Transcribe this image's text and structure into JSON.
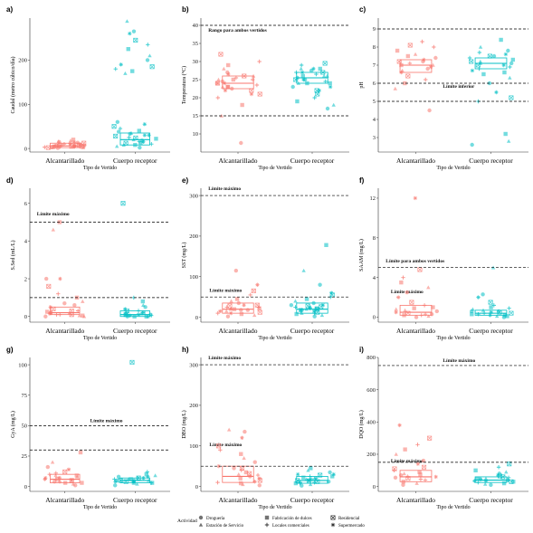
{
  "colors": {
    "alcantarillado": "#F8766D",
    "cuerpo_receptor": "#00BFC4",
    "reference": "#000000"
  },
  "legend": {
    "title": "Actividad",
    "entries": [
      {
        "label": "Droguería",
        "shape": "circle"
      },
      {
        "label": "Estación de Servicio",
        "shape": "triangle"
      },
      {
        "label": "Fabricación de dulces",
        "shape": "square"
      },
      {
        "label": "Locales comerciales",
        "shape": "plus"
      },
      {
        "label": "Residencial",
        "shape": "square-x"
      },
      {
        "label": "Supermercado",
        "shape": "asterisk"
      }
    ]
  },
  "chart_data": [
    {
      "panel": "a)",
      "type": "scatter",
      "ylabel": "Caudal (metro cúbico/día)",
      "xlabel": "Tipo de Vertido",
      "categories": [
        "Alcantarillado",
        "Cuerpo receptor"
      ],
      "ylim": [
        -8,
        295
      ],
      "yticks": [
        0,
        100,
        200
      ],
      "reference_lines": [],
      "series": [
        {
          "name": "Alcantarillado",
          "median": 6,
          "q1": 2,
          "q3": 12,
          "values": [
            1,
            2,
            3,
            4,
            5,
            6,
            7,
            8,
            9,
            10,
            12,
            14,
            15,
            18,
            20,
            3,
            5,
            7,
            9,
            2,
            4,
            6,
            8,
            11,
            13,
            16,
            6,
            4,
            2,
            5
          ]
        },
        {
          "name": "Cuerpo receptor",
          "median": 20,
          "q1": 8,
          "q3": 35,
          "values": [
            2,
            5,
            8,
            10,
            12,
            15,
            18,
            20,
            22,
            25,
            28,
            30,
            33,
            35,
            40,
            45,
            50,
            55,
            60,
            8,
            12,
            16,
            24,
            30,
            38,
            170,
            175,
            180,
            185,
            190,
            200,
            210,
            225,
            235,
            245,
            260,
            265,
            288
          ]
        }
      ]
    },
    {
      "panel": "b)",
      "type": "scatter",
      "ylabel": "Temperatura (°C)",
      "xlabel": "Tipo de Vertido",
      "categories": [
        "Alcantarillado",
        "Cuerpo receptor"
      ],
      "ylim": [
        5,
        42
      ],
      "yticks": [
        10,
        15,
        20,
        25,
        30,
        35,
        40
      ],
      "reference_lines": [
        {
          "label": "Rango para ambos vertidos",
          "y": 40,
          "label_y": 38.3,
          "label_x": 0.05
        },
        {
          "label": "",
          "y": 15
        }
      ],
      "series": [
        {
          "name": "Alcantarillado",
          "median": 24,
          "q1": 22.5,
          "q3": 26,
          "values": [
            7.5,
            15,
            18,
            20,
            21,
            22,
            22.5,
            23,
            23,
            23.5,
            24,
            24,
            24.5,
            25,
            25,
            25.5,
            26,
            26.5,
            27,
            28,
            29,
            30,
            32,
            21,
            24,
            26,
            23,
            25,
            22
          ]
        },
        {
          "name": "Cuerpo receptor",
          "median": 25.5,
          "q1": 24,
          "q3": 27,
          "values": [
            17,
            18,
            19,
            20,
            21,
            22,
            23,
            24,
            24,
            24.5,
            25,
            25,
            25.5,
            26,
            26,
            26.5,
            27,
            27,
            27.5,
            28,
            28,
            29,
            29.5,
            23,
            25,
            26,
            24,
            27,
            22,
            28
          ]
        }
      ]
    },
    {
      "panel": "c)",
      "type": "scatter",
      "ylabel": "pH",
      "xlabel": "Tipo de Vertido",
      "categories": [
        "Alcantarillado",
        "Cuerpo receptor"
      ],
      "ylim": [
        2.2,
        9.6
      ],
      "yticks": [
        3,
        4,
        5,
        6,
        7,
        8,
        9
      ],
      "reference_lines": [
        {
          "label": "",
          "y": 9
        },
        {
          "label": "Límite inferior",
          "y": 6,
          "label_y": 5.75,
          "label_x": 0.43
        },
        {
          "label": "Límite inferior",
          "y": 5,
          "label_y": 4.75,
          "label_x": 1.26
        }
      ],
      "series": [
        {
          "name": "Alcantarillado",
          "median": 7,
          "q1": 6.6,
          "q3": 7.3,
          "values": [
            4.5,
            5.7,
            6,
            6.2,
            6.4,
            6.6,
            6.8,
            7,
            7,
            7.1,
            7.2,
            7.3,
            7.4,
            7.6,
            7.8,
            8,
            8.1,
            6.9,
            7.2,
            6.7,
            7.5,
            8.3
          ]
        },
        {
          "name": "Cuerpo receptor",
          "median": 7.1,
          "q1": 6.8,
          "q3": 7.4,
          "values": [
            2.6,
            2.8,
            3.2,
            5,
            5.2,
            5.5,
            6,
            6.3,
            6.6,
            6.8,
            7,
            7,
            7.1,
            7.2,
            7.3,
            7.4,
            7.5,
            7.6,
            7.8,
            8,
            8.4,
            6.9,
            7.2,
            6.7,
            7.5,
            7.1,
            6.5,
            7.7
          ]
        }
      ]
    },
    {
      "panel": "d)",
      "type": "scatter",
      "ylabel": "S.Sed (mL/L)",
      "xlabel": "Tipo de Vertido",
      "categories": [
        "Alcantarillado",
        "Cuerpo receptor"
      ],
      "ylim": [
        -0.3,
        6.8
      ],
      "yticks": [
        0,
        2,
        4,
        6
      ],
      "reference_lines": [
        {
          "label": "Límite máximo",
          "y": 5,
          "label_y": 5.35,
          "label_x": 0.05
        },
        {
          "label": "Límite máximo",
          "y": 1,
          "label_y": 1.3,
          "label_x": 1.28
        }
      ],
      "series": [
        {
          "name": "Alcantarillado",
          "median": 0.2,
          "q1": 0.1,
          "q3": 0.5,
          "values": [
            0,
            0,
            0.05,
            0.1,
            0.1,
            0.15,
            0.2,
            0.2,
            0.25,
            0.3,
            0.4,
            0.5,
            0.6,
            0.8,
            1,
            1.2,
            1.6,
            2,
            2,
            4.6,
            5,
            0.1,
            0.3,
            0.2,
            0.7,
            0.05
          ]
        },
        {
          "name": "Cuerpo receptor",
          "median": 0.1,
          "q1": 0,
          "q3": 0.3,
          "values": [
            0,
            0,
            0,
            0.05,
            0.1,
            0.1,
            0.1,
            0.15,
            0.2,
            0.2,
            0.3,
            0.4,
            0.5,
            0.6,
            0.8,
            1,
            6,
            0.05,
            0.1,
            0.2,
            0,
            0.3
          ]
        }
      ]
    },
    {
      "panel": "e)",
      "type": "scatter",
      "ylabel": "SST (mg/L)",
      "xlabel": "Tipo de Vertido",
      "categories": [
        "Alcantarillado",
        "Cuerpo receptor"
      ],
      "ylim": [
        -12,
        318
      ],
      "yticks": [
        0,
        100,
        200,
        300
      ],
      "reference_lines": [
        {
          "label": "Límite máximo",
          "y": 300,
          "label_y": 313,
          "label_x": 0.05
        },
        {
          "label": "Límite máximo",
          "y": 50,
          "label_y": 59,
          "label_x": 1.28
        }
      ],
      "series": [
        {
          "name": "Alcantarillado",
          "median": 20,
          "q1": 10,
          "q3": 35,
          "values": [
            2,
            5,
            8,
            10,
            12,
            15,
            18,
            20,
            22,
            25,
            28,
            30,
            35,
            40,
            45,
            55,
            65,
            80,
            115,
            15,
            20,
            25,
            30,
            10,
            18,
            22
          ]
        },
        {
          "name": "Cuerpo receptor",
          "median": 20,
          "q1": 10,
          "q3": 35,
          "values": [
            2,
            5,
            8,
            10,
            12,
            15,
            18,
            20,
            22,
            25,
            28,
            30,
            35,
            40,
            45,
            50,
            55,
            60,
            80,
            115,
            178,
            15,
            20,
            25,
            30,
            10,
            18,
            22,
            26
          ]
        }
      ]
    },
    {
      "panel": "f)",
      "type": "scatter",
      "ylabel": "SAAM (mg/L)",
      "xlabel": "Tipo de Vertido",
      "categories": [
        "Alcantarillado",
        "Cuerpo receptor"
      ],
      "ylim": [
        -0.5,
        13
      ],
      "yticks": [
        0,
        4,
        8,
        12
      ],
      "reference_lines": [
        {
          "label": "Límite para ambos vertidos",
          "y": 5,
          "label_y": 5.5,
          "label_x": 0.05
        }
      ],
      "series": [
        {
          "name": "Alcantarillado",
          "median": 0.5,
          "q1": 0.2,
          "q3": 1.2,
          "values": [
            0,
            0.1,
            0.2,
            0.3,
            0.4,
            0.5,
            0.6,
            0.8,
            1,
            1.2,
            1.5,
            2,
            2.5,
            3,
            3.5,
            4,
            4.8,
            12,
            0.3,
            0.7,
            0.9,
            0.2
          ]
        },
        {
          "name": "Cuerpo receptor",
          "median": 0.4,
          "q1": 0.2,
          "q3": 0.7,
          "values": [
            0,
            0.1,
            0.2,
            0.3,
            0.4,
            0.5,
            0.6,
            0.8,
            1,
            1.2,
            1.5,
            2,
            2.3,
            5,
            0.3,
            0.4,
            0.5,
            0.2,
            0.6,
            0.7,
            0.1,
            0.9
          ]
        }
      ]
    },
    {
      "panel": "g)",
      "type": "scatter",
      "ylabel": "GyA (mg/L)",
      "xlabel": "Tipo de Vertido",
      "categories": [
        "Alcantarillado",
        "Cuerpo receptor"
      ],
      "ylim": [
        -4,
        106
      ],
      "yticks": [
        0,
        25,
        50,
        75,
        100
      ],
      "reference_lines": [
        {
          "label": "Límite máximo",
          "y": 50,
          "label_y": 53,
          "label_x": 0.43
        },
        {
          "label": "Límite máximo",
          "y": 30,
          "label_y": 33,
          "label_x": 1.28
        }
      ],
      "series": [
        {
          "name": "Alcantarillado",
          "median": 6,
          "q1": 3,
          "q3": 10,
          "values": [
            1,
            2,
            3,
            4,
            5,
            6,
            7,
            8,
            9,
            10,
            12,
            14,
            16,
            20,
            28,
            5,
            6,
            7,
            4,
            9,
            3,
            11
          ]
        },
        {
          "name": "Cuerpo receptor",
          "median": 5,
          "q1": 3,
          "q3": 7,
          "values": [
            1,
            2,
            3,
            3,
            4,
            4,
            5,
            5,
            6,
            6,
            7,
            7,
            8,
            9,
            10,
            12,
            102,
            4,
            5,
            6,
            3,
            7,
            5,
            8
          ]
        }
      ]
    },
    {
      "panel": "h)",
      "type": "scatter",
      "ylabel": "DBO (mg/L)",
      "xlabel": "Tipo de Vertido",
      "categories": [
        "Alcantarillado",
        "Cuerpo receptor"
      ],
      "ylim": [
        -12,
        318
      ],
      "yticks": [
        0,
        100,
        200,
        300
      ],
      "reference_lines": [
        {
          "label": "Límite máximo",
          "y": 300,
          "label_y": 313,
          "label_x": 0.05
        },
        {
          "label": "Límite máximo",
          "y": 50,
          "label_y": 59,
          "label_x": 1.28
        }
      ],
      "series": [
        {
          "name": "Alcantarillado",
          "median": 25,
          "q1": 10,
          "q3": 50,
          "values": [
            3,
            5,
            8,
            10,
            15,
            20,
            25,
            30,
            35,
            40,
            45,
            50,
            60,
            70,
            80,
            90,
            100,
            120,
            135,
            140,
            20,
            28,
            32,
            12,
            45
          ]
        },
        {
          "name": "Cuerpo receptor",
          "median": 15,
          "q1": 8,
          "q3": 25,
          "values": [
            2,
            5,
            8,
            10,
            12,
            15,
            18,
            20,
            22,
            25,
            28,
            30,
            35,
            40,
            45,
            10,
            15,
            20,
            12,
            18,
            25,
            8,
            14,
            30
          ]
        }
      ]
    },
    {
      "panel": "i)",
      "type": "scatter",
      "ylabel": "DQO (mg/L)",
      "xlabel": "Tipo de Vertido",
      "categories": [
        "Alcantarillado",
        "Cuerpo receptor"
      ],
      "ylim": [
        -30,
        800
      ],
      "yticks": [
        0,
        200,
        400,
        600,
        800
      ],
      "reference_lines": [
        {
          "label": "Límite máximo",
          "y": 750,
          "label_y": 772,
          "label_x": 0.43
        },
        {
          "label": "Límite máximo",
          "y": 150,
          "label_y": 172,
          "label_x": 1.28
        }
      ],
      "series": [
        {
          "name": "Alcantarillado",
          "median": 60,
          "q1": 30,
          "q3": 100,
          "values": [
            10,
            20,
            30,
            40,
            50,
            60,
            70,
            80,
            90,
            100,
            120,
            140,
            160,
            200,
            230,
            260,
            300,
            380,
            55,
            65,
            75,
            45,
            110
          ]
        },
        {
          "name": "Cuerpo receptor",
          "median": 40,
          "q1": 25,
          "q3": 60,
          "values": [
            10,
            15,
            20,
            25,
            30,
            35,
            40,
            45,
            50,
            55,
            60,
            70,
            80,
            90,
            100,
            120,
            140,
            35,
            45,
            50,
            30,
            40,
            65
          ]
        }
      ]
    }
  ]
}
